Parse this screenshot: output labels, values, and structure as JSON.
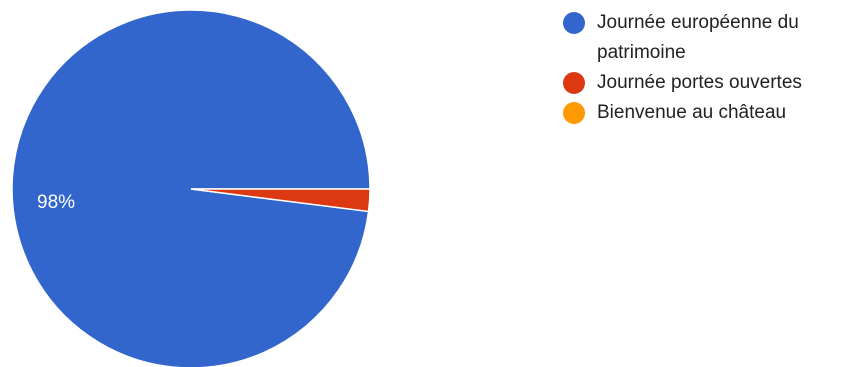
{
  "chart_data": {
    "type": "pie",
    "slices": [
      {
        "label": "Journée européenne du patrimoine",
        "value": 98,
        "color": "#3366CC"
      },
      {
        "label": "Journée portes ouvertes",
        "value": 2,
        "color": "#DC3912"
      },
      {
        "label": "Bienvenue au château",
        "value": 0,
        "color": "#FF9900"
      }
    ],
    "data_labels": [
      "98%"
    ],
    "legend_position": "right"
  }
}
